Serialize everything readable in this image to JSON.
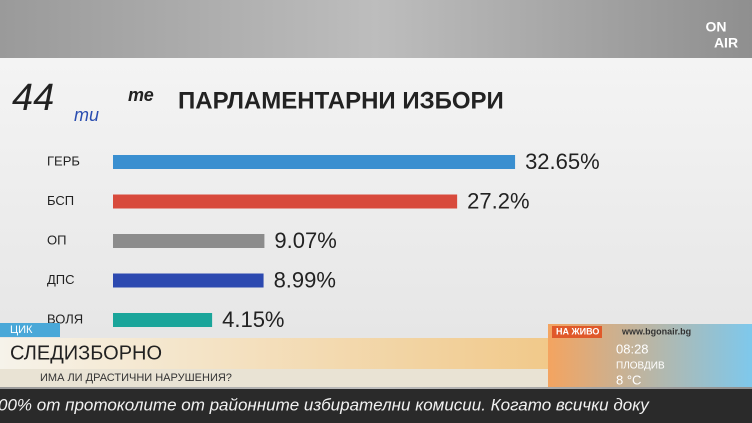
{
  "chart_data": {
    "type": "bar",
    "orientation": "horizontal",
    "title": "ПАРЛАМЕНТАРНИ ИЗБОРИ",
    "categories": [
      "ГЕРБ",
      "БСП",
      "ОП",
      "ДПС",
      "ВОЛЯ"
    ],
    "values": [
      32.65,
      27.2,
      9.07,
      8.99,
      4.15
    ],
    "value_labels": [
      "32.65%",
      "27.2%",
      "9.07%",
      "8.99%",
      "4.15%"
    ],
    "colors": [
      "#3a8fd0",
      "#d84a3c",
      "#8c8c8c",
      "#2c49b0",
      "#1aa59a"
    ]
  },
  "logo": {
    "number": "44",
    "suffix_1": "ти",
    "suffix_2": "те"
  },
  "channel_logo": {
    "line_1": "ON",
    "line_2": "AIR"
  },
  "lower_third": {
    "tag": "ЦИК",
    "headline": "СЛЕДИЗБОРНО",
    "subheadline": "ИМА ЛИ ДРАСТИЧНИ НАРУШЕНИЯ?"
  },
  "live": {
    "label": "НА ЖИВО",
    "url": "www.bgonair.bg",
    "time": "08:28",
    "city": "ПЛОВДИВ",
    "temperature": "8 °C"
  },
  "ticker": "00% от протоколите от районните избирателни комисии. Когато всички доку"
}
